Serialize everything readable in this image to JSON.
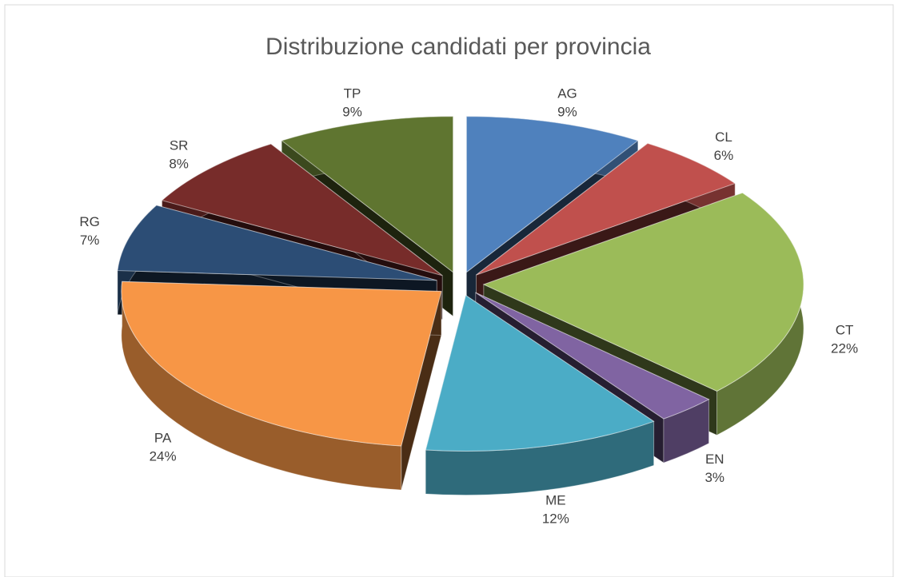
{
  "chart_data": {
    "type": "pie",
    "title": "Distribuzione candidati per provincia",
    "categories": [
      "AG",
      "CL",
      "CT",
      "EN",
      "ME",
      "PA",
      "RG",
      "SR",
      "TP"
    ],
    "values": [
      9,
      6,
      22,
      3,
      12,
      24,
      7,
      8,
      9
    ],
    "value_labels": [
      "9%",
      "6%",
      "22%",
      "3%",
      "12%",
      "24%",
      "7%",
      "8%",
      "9%"
    ],
    "colors": [
      "#4f81bd",
      "#c0504d",
      "#9bbb59",
      "#8064a2",
      "#4bacc6",
      "#f79646",
      "#2c4d75",
      "#772c2a",
      "#5f7530"
    ]
  }
}
